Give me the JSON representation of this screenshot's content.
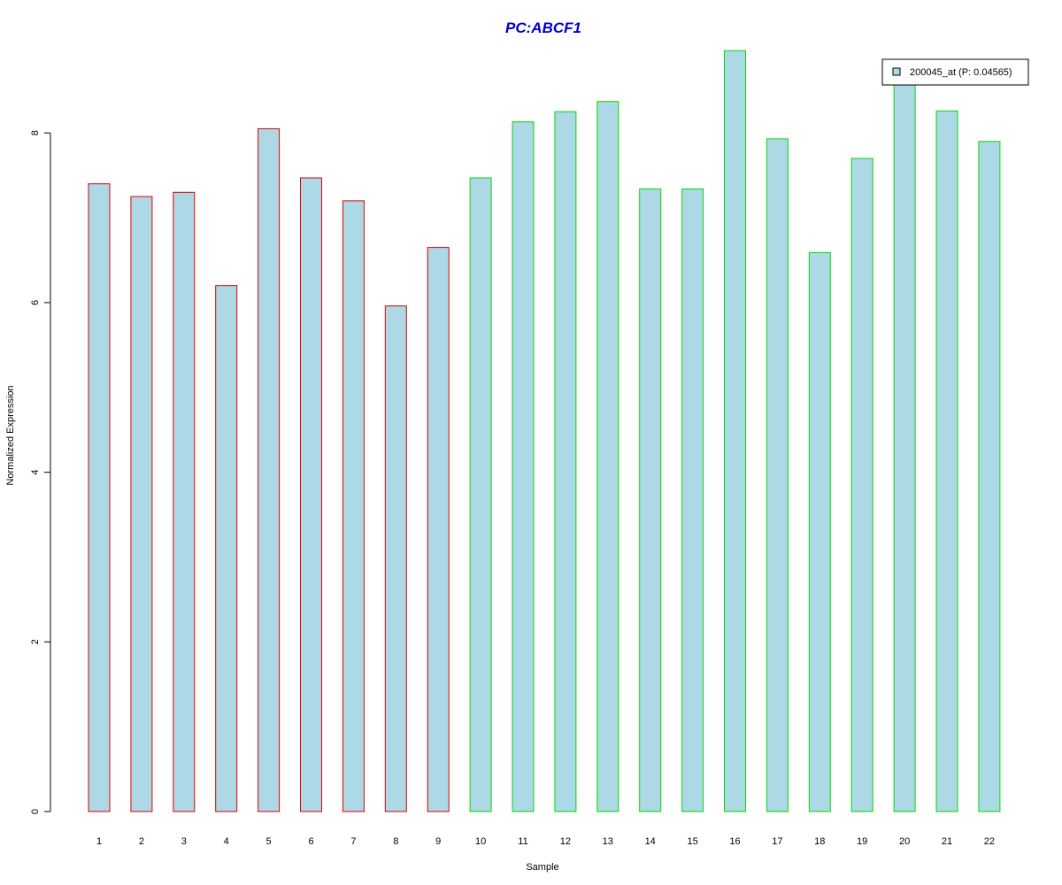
{
  "chart_data": {
    "type": "bar",
    "title": "PC:ABCF1",
    "xlabel": "Sample",
    "ylabel": "Normalized Expression",
    "categories": [
      "1",
      "2",
      "3",
      "4",
      "5",
      "6",
      "7",
      "8",
      "9",
      "10",
      "11",
      "12",
      "13",
      "14",
      "15",
      "16",
      "17",
      "18",
      "19",
      "20",
      "21",
      "22"
    ],
    "values": [
      7.4,
      7.25,
      7.3,
      6.2,
      8.05,
      7.47,
      7.2,
      5.96,
      6.65,
      7.47,
      8.13,
      8.25,
      8.37,
      7.34,
      7.34,
      8.97,
      7.93,
      6.59,
      7.7,
      8.63,
      8.26,
      7.9
    ],
    "bar_border_colors": [
      "#dd0000",
      "#dd0000",
      "#dd0000",
      "#dd0000",
      "#dd0000",
      "#dd0000",
      "#dd0000",
      "#dd0000",
      "#dd0000",
      "#00dd00",
      "#00dd00",
      "#00dd00",
      "#00dd00",
      "#00dd00",
      "#00dd00",
      "#00dd00",
      "#00dd00",
      "#00dd00",
      "#00dd00",
      "#00dd00",
      "#00dd00",
      "#00dd00"
    ],
    "ylim": [
      0,
      9
    ],
    "yticks": [
      0,
      2,
      4,
      6,
      8
    ],
    "grid": false,
    "legend": {
      "position": "top-right",
      "entries": [
        {
          "label": "200045_at (P: 0.04565)",
          "color": "#add8e6"
        }
      ]
    },
    "colors": {
      "bar_fill": "#add8e6",
      "title": "#0000cc",
      "axis": "#000000"
    }
  }
}
